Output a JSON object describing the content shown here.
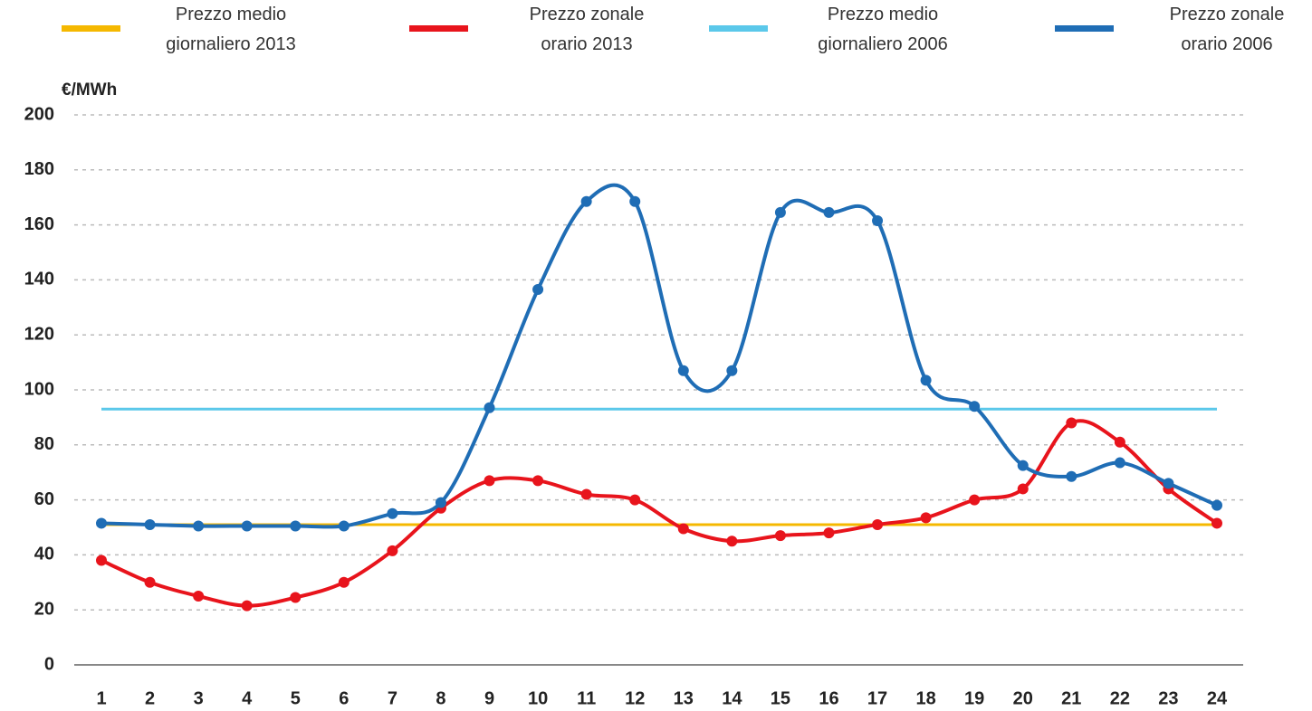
{
  "chart_data": {
    "type": "line",
    "y_axis_label": "€/MWh",
    "categories": [
      "1",
      "2",
      "3",
      "4",
      "5",
      "6",
      "7",
      "8",
      "9",
      "10",
      "11",
      "12",
      "13",
      "14",
      "15",
      "16",
      "17",
      "18",
      "19",
      "20",
      "21",
      "22",
      "23",
      "24"
    ],
    "series": [
      {
        "name": "Prezzo medio giornaliero 2013",
        "color": "#f5b800",
        "markers": false,
        "smooth": false,
        "values": [
          51,
          51,
          51,
          51,
          51,
          51,
          51,
          51,
          51,
          51,
          51,
          51,
          51,
          51,
          51,
          51,
          51,
          51,
          51,
          51,
          51,
          51,
          51,
          51
        ]
      },
      {
        "name": "Prezzo zonale orario 2013",
        "color": "#e8141c",
        "markers": true,
        "smooth": true,
        "values": [
          38,
          30,
          25,
          21.5,
          24.5,
          30,
          41.5,
          57,
          67,
          67,
          62,
          60,
          49.5,
          45,
          47,
          48,
          51,
          53.5,
          60,
          64,
          88,
          81,
          64,
          51.5
        ]
      },
      {
        "name": "Prezzo medio giornaliero 2006",
        "color": "#5bc8ea",
        "markers": false,
        "smooth": false,
        "values": [
          93,
          93,
          93,
          93,
          93,
          93,
          93,
          93,
          93,
          93,
          93,
          93,
          93,
          93,
          93,
          93,
          93,
          93,
          93,
          93,
          93,
          93,
          93,
          93
        ]
      },
      {
        "name": "Prezzo zonale orario 2006",
        "color": "#1f6db5",
        "markers": true,
        "smooth": true,
        "values": [
          51.5,
          51,
          50.5,
          50.5,
          50.5,
          50.5,
          55,
          59,
          93.5,
          136.5,
          168.5,
          168.5,
          107,
          107,
          164.5,
          164.5,
          161.5,
          103.5,
          94,
          72.5,
          68.5,
          73.5,
          66,
          58
        ]
      }
    ],
    "ylim": [
      0,
      200
    ],
    "yticks": [
      0,
      20,
      40,
      60,
      80,
      100,
      120,
      140,
      160,
      180,
      200
    ],
    "grid": true
  }
}
